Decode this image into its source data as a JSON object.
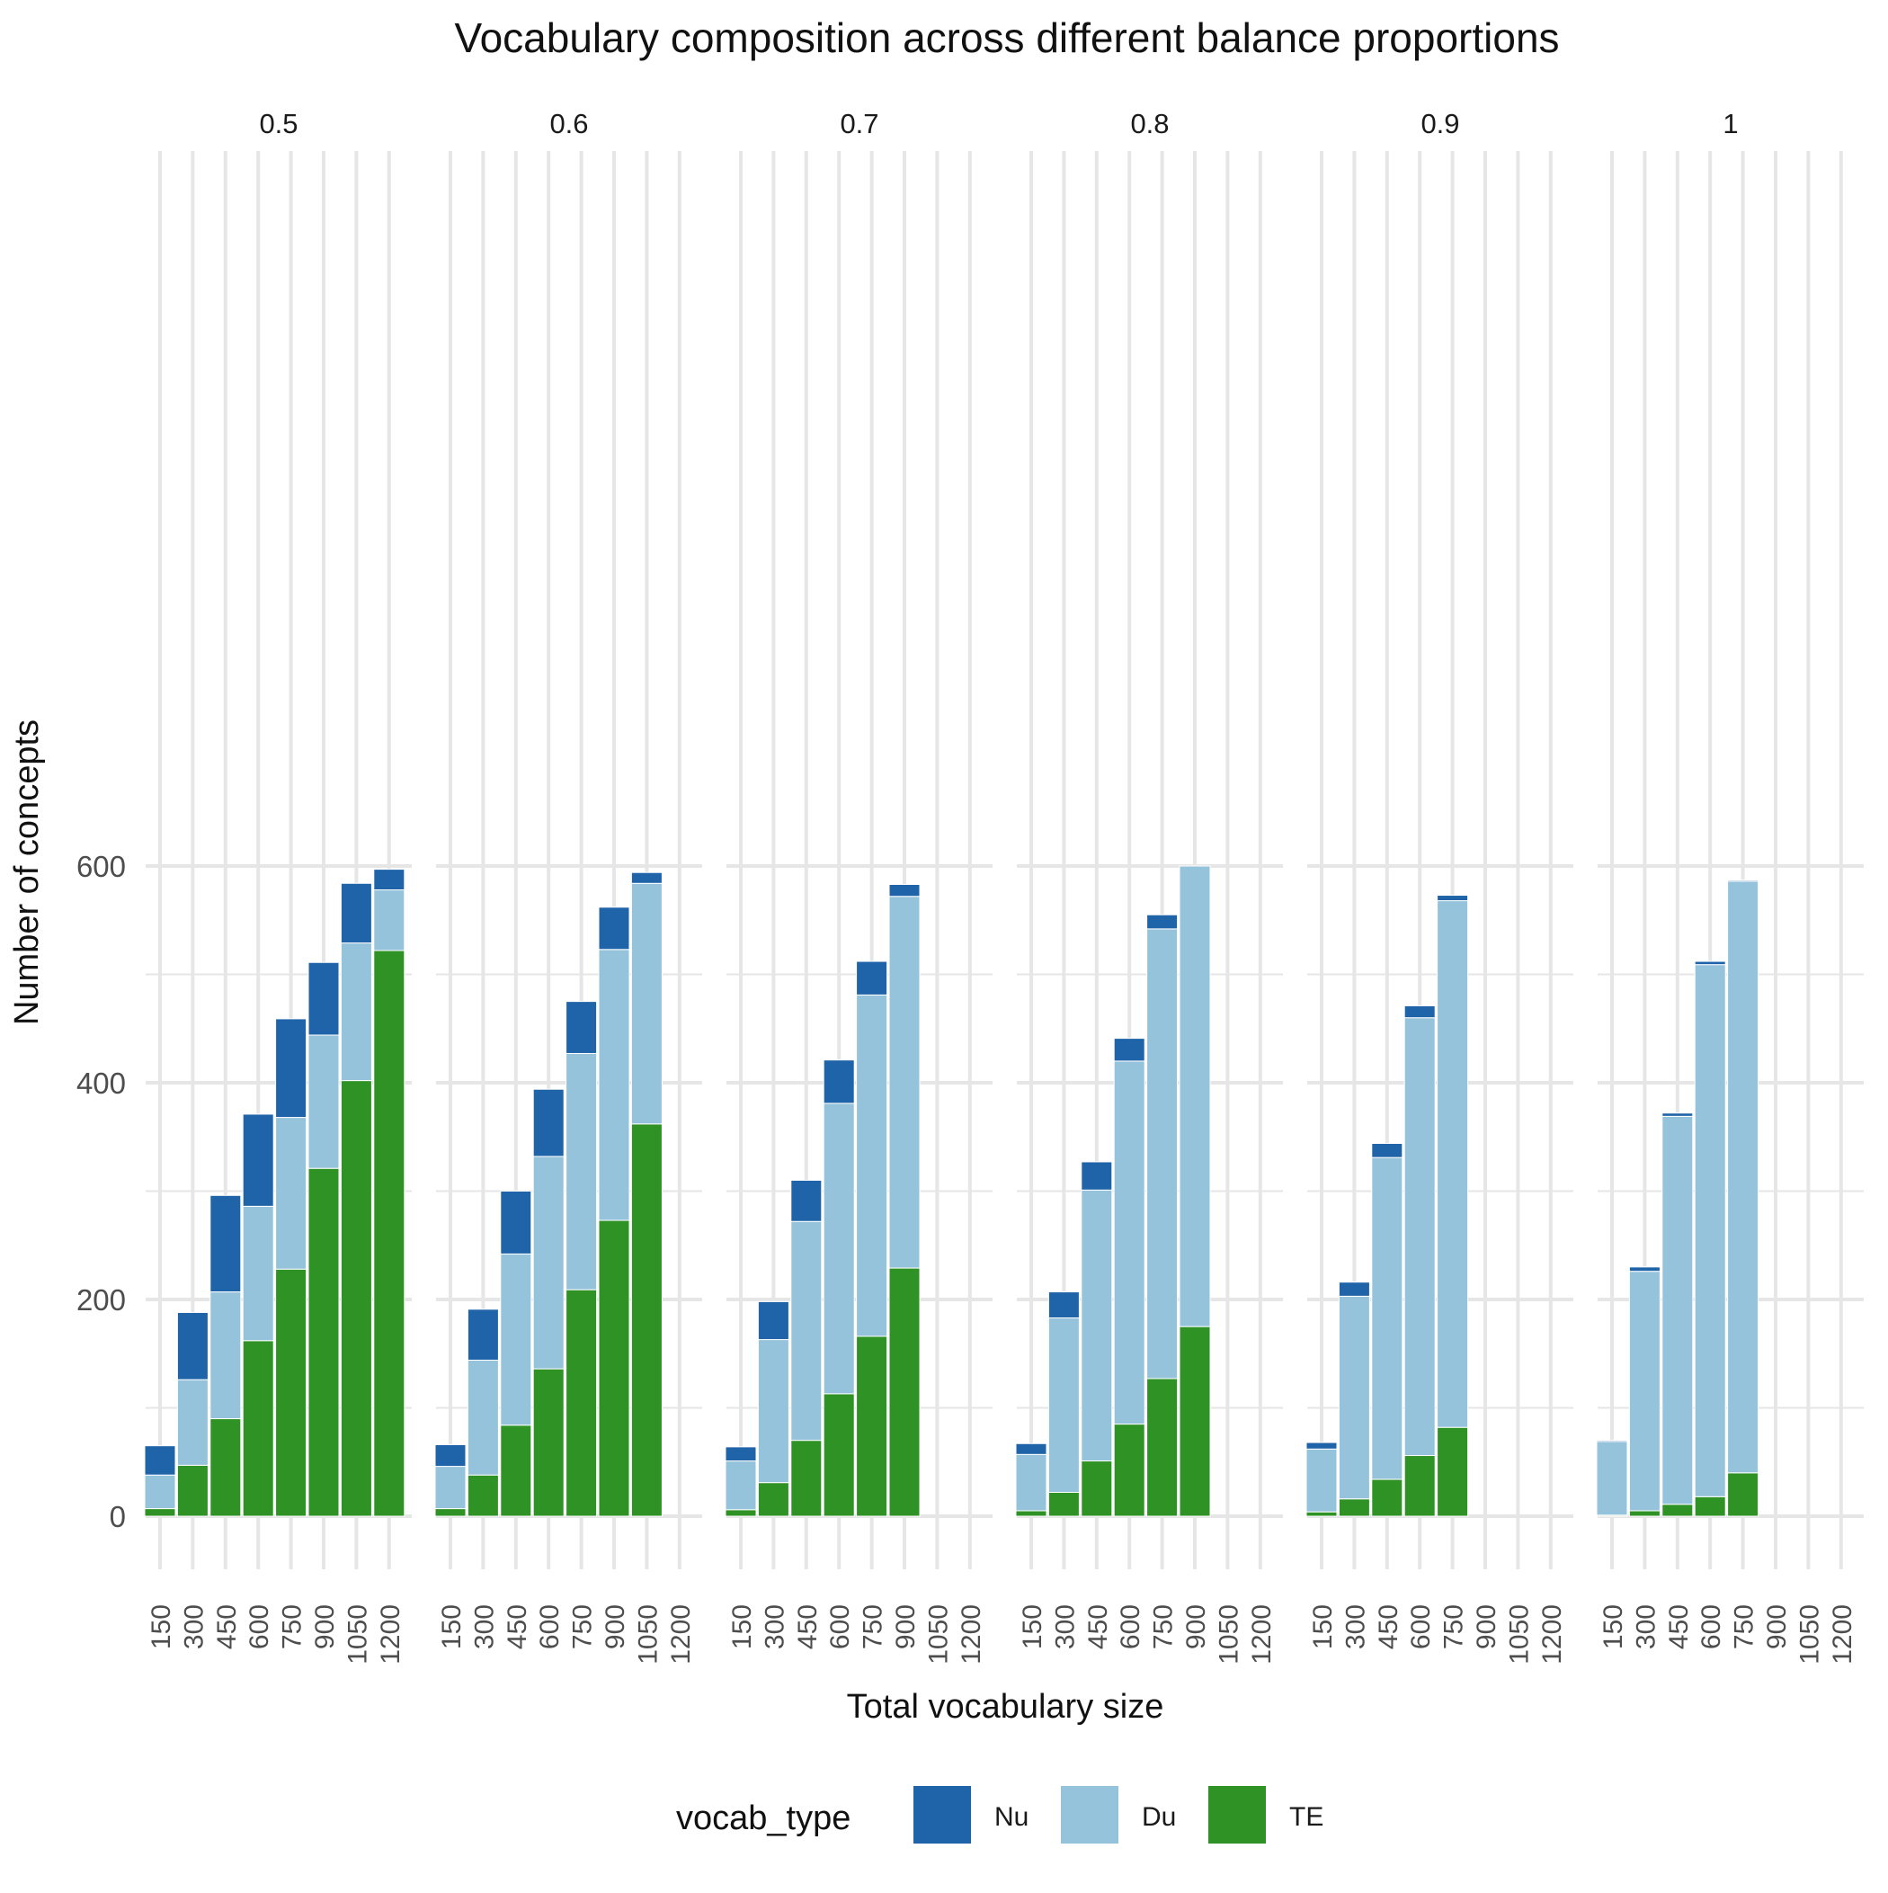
{
  "chart_data": {
    "type": "bar",
    "stacked": true,
    "title": "Vocabulary composition across different balance proportions",
    "xlabel": "Total vocabulary size",
    "ylabel": "Number of concepts",
    "ylim": [
      -30,
      630
    ],
    "y_ticks": [
      0,
      200,
      400,
      600
    ],
    "x_ticks": [
      "150",
      "300",
      "450",
      "600",
      "750",
      "900",
      "1050",
      "1200"
    ],
    "grid": true,
    "legend": {
      "title": "vocab_type",
      "position": "bottom",
      "entries": [
        {
          "key": "Nu",
          "label": "Nu",
          "color": "#1f63a8"
        },
        {
          "key": "Du",
          "label": "Du",
          "color": "#96c3dc"
        },
        {
          "key": "TE",
          "label": "TE",
          "color": "#2e9224"
        }
      ]
    },
    "stack_order_bottom_to_top": [
      "TE",
      "Du",
      "Nu"
    ],
    "panels": [
      {
        "label": "0.5",
        "bars": [
          {
            "x": 150,
            "TE": 7,
            "Du": 31,
            "Nu": 27
          },
          {
            "x": 300,
            "TE": 47,
            "Du": 79,
            "Nu": 62
          },
          {
            "x": 450,
            "TE": 90,
            "Du": 117,
            "Nu": 89
          },
          {
            "x": 600,
            "TE": 162,
            "Du": 124,
            "Nu": 85
          },
          {
            "x": 750,
            "TE": 228,
            "Du": 140,
            "Nu": 91
          },
          {
            "x": 900,
            "TE": 321,
            "Du": 123,
            "Nu": 67
          },
          {
            "x": 1050,
            "TE": 402,
            "Du": 127,
            "Nu": 55
          },
          {
            "x": 1200,
            "TE": 522,
            "Du": 56,
            "Nu": 19
          }
        ]
      },
      {
        "label": "0.6",
        "bars": [
          {
            "x": 150,
            "TE": 7,
            "Du": 39,
            "Nu": 20
          },
          {
            "x": 300,
            "TE": 38,
            "Du": 106,
            "Nu": 47
          },
          {
            "x": 450,
            "TE": 84,
            "Du": 158,
            "Nu": 58
          },
          {
            "x": 600,
            "TE": 136,
            "Du": 196,
            "Nu": 62
          },
          {
            "x": 750,
            "TE": 209,
            "Du": 218,
            "Nu": 48
          },
          {
            "x": 900,
            "TE": 273,
            "Du": 250,
            "Nu": 39
          },
          {
            "x": 1050,
            "TE": 362,
            "Du": 222,
            "Nu": 10
          }
        ]
      },
      {
        "label": "0.7",
        "bars": [
          {
            "x": 150,
            "TE": 6,
            "Du": 45,
            "Nu": 13
          },
          {
            "x": 300,
            "TE": 31,
            "Du": 132,
            "Nu": 35
          },
          {
            "x": 450,
            "TE": 70,
            "Du": 202,
            "Nu": 38
          },
          {
            "x": 600,
            "TE": 113,
            "Du": 268,
            "Nu": 40
          },
          {
            "x": 750,
            "TE": 166,
            "Du": 315,
            "Nu": 31
          },
          {
            "x": 900,
            "TE": 229,
            "Du": 343,
            "Nu": 11
          }
        ]
      },
      {
        "label": "0.8",
        "bars": [
          {
            "x": 150,
            "TE": 5,
            "Du": 52,
            "Nu": 10
          },
          {
            "x": 300,
            "TE": 22,
            "Du": 161,
            "Nu": 24
          },
          {
            "x": 450,
            "TE": 51,
            "Du": 250,
            "Nu": 26
          },
          {
            "x": 600,
            "TE": 85,
            "Du": 335,
            "Nu": 21
          },
          {
            "x": 750,
            "TE": 127,
            "Du": 415,
            "Nu": 13
          },
          {
            "x": 900,
            "TE": 175,
            "Du": 425,
            "Nu": 0
          }
        ]
      },
      {
        "label": "0.9",
        "bars": [
          {
            "x": 150,
            "TE": 4,
            "Du": 58,
            "Nu": 6
          },
          {
            "x": 300,
            "TE": 16,
            "Du": 187,
            "Nu": 13
          },
          {
            "x": 450,
            "TE": 34,
            "Du": 297,
            "Nu": 13
          },
          {
            "x": 600,
            "TE": 56,
            "Du": 404,
            "Nu": 11
          },
          {
            "x": 750,
            "TE": 82,
            "Du": 486,
            "Nu": 5
          }
        ]
      },
      {
        "label": "1",
        "bars": [
          {
            "x": 150,
            "TE": 1,
            "Du": 68,
            "Nu": 1
          },
          {
            "x": 300,
            "TE": 5,
            "Du": 221,
            "Nu": 4
          },
          {
            "x": 450,
            "TE": 11,
            "Du": 358,
            "Nu": 3
          },
          {
            "x": 600,
            "TE": 18,
            "Du": 491,
            "Nu": 3
          },
          {
            "x": 750,
            "TE": 40,
            "Du": 546,
            "Nu": 1
          }
        ]
      }
    ]
  }
}
